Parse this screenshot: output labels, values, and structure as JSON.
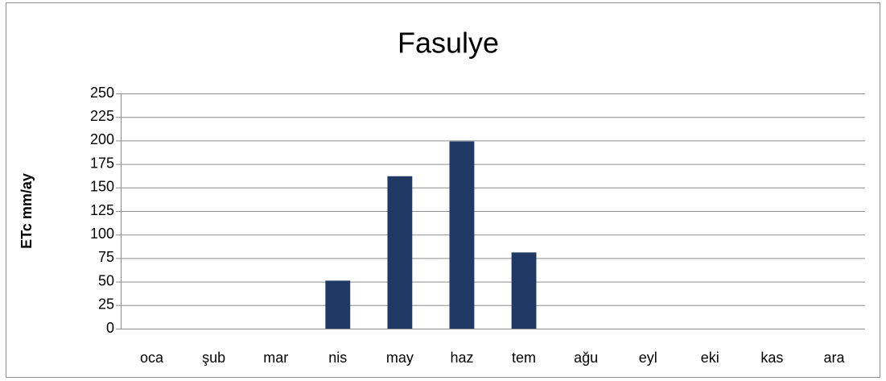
{
  "chart_data": {
    "type": "bar",
    "title": "Fasulye",
    "y_label": "ETc mm/ay",
    "categories": [
      "oca",
      "şub",
      "mar",
      "nis",
      "may",
      "haz",
      "tem",
      "ağu",
      "eyl",
      "eki",
      "kas",
      "ara"
    ],
    "values": [
      0,
      0,
      0,
      51,
      162,
      199,
      81,
      0,
      0,
      0,
      0,
      0
    ],
    "color": "#1f3864",
    "ylim": [
      0,
      250
    ],
    "yticks": [
      0,
      25,
      50,
      75,
      100,
      125,
      150,
      175,
      200,
      225,
      250
    ],
    "grid": true
  }
}
